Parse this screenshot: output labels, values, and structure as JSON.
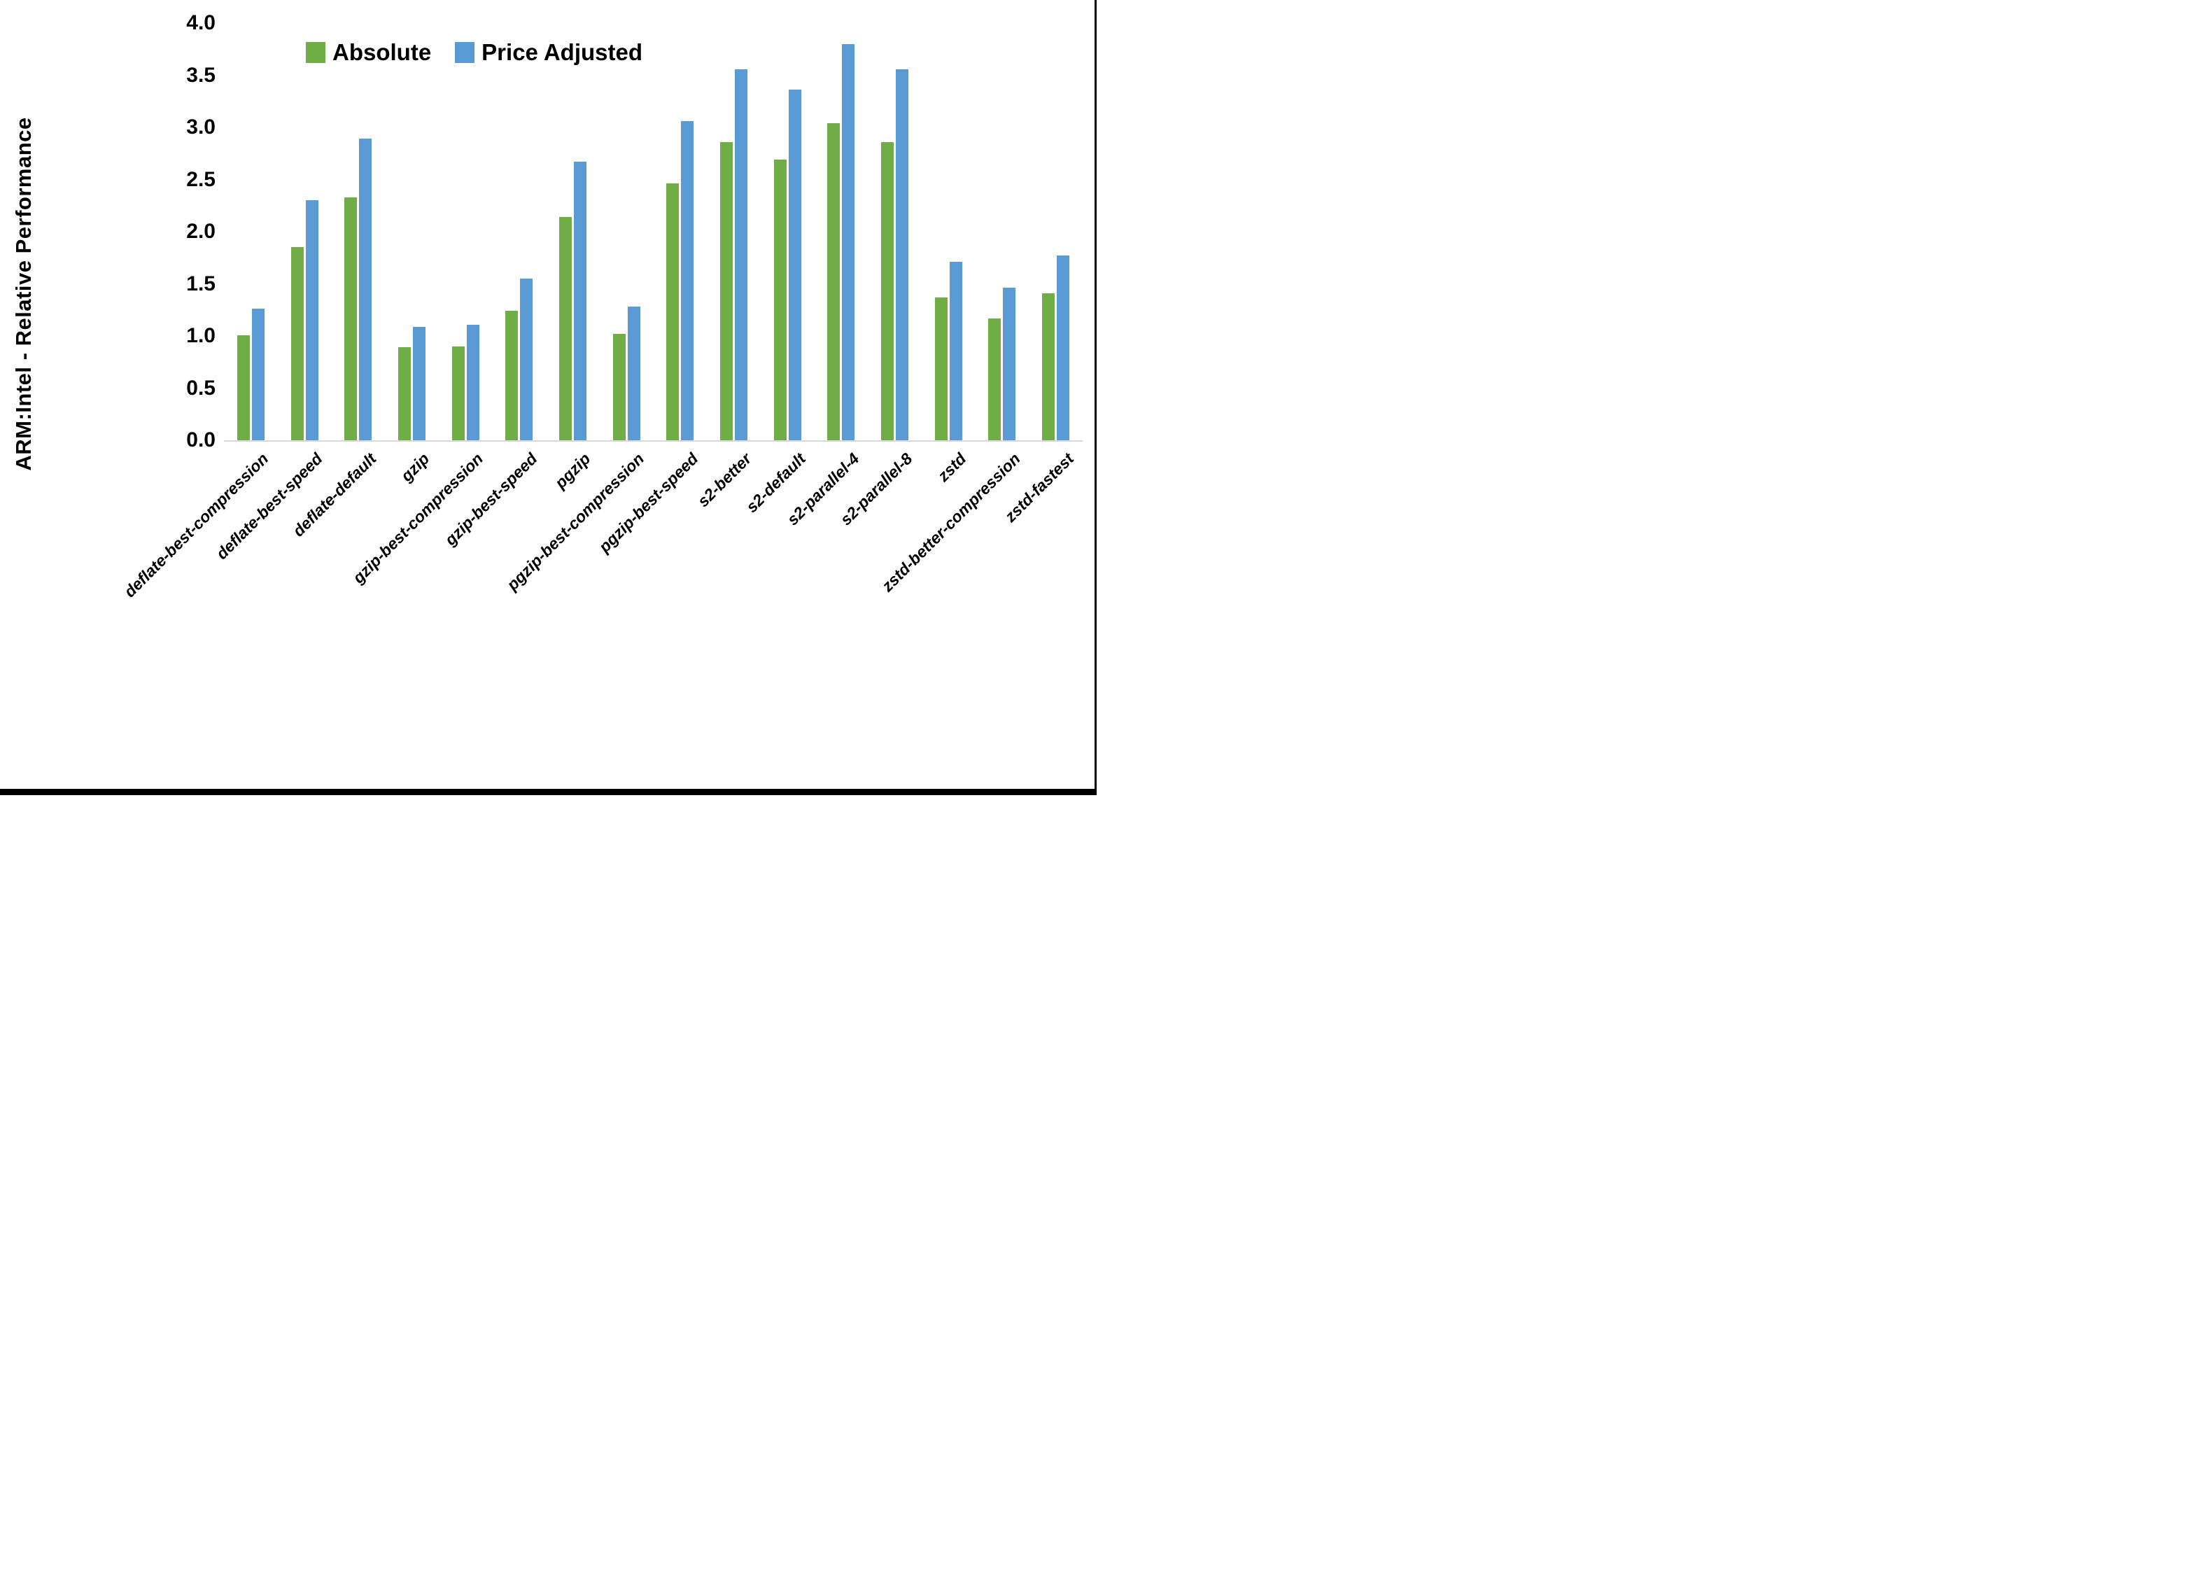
{
  "chart_data": {
    "type": "bar",
    "title": "",
    "ylabel": "ARM:Intel - Relative Performance",
    "xlabel": "",
    "ylim": [
      0.0,
      4.0
    ],
    "yticks": [
      "4.0",
      "3.5",
      "3.0",
      "2.5",
      "2.0",
      "1.5",
      "1.0",
      "0.5",
      "0.0"
    ],
    "grid": false,
    "legend_position": "top-center",
    "axis_line_color": "#D9D9D9",
    "text_color": "#000000",
    "categories": [
      "deflate-best-compression",
      "deflate-best-speed",
      "deflate-default",
      "gzip",
      "gzip-best-compression",
      "gzip-best-speed",
      "pgzip",
      "pgzip-best-compression",
      "pgzip-best-speed",
      "s2-better",
      "s2-default",
      "s2-parallel-4",
      "s2-parallel-8",
      "zstd",
      "zstd-better-compression",
      "zstd-fastest"
    ],
    "series": [
      {
        "name": "Absolute",
        "color": "#70AD47",
        "values": [
          1.01,
          1.85,
          2.33,
          0.89,
          0.9,
          1.24,
          2.14,
          1.02,
          2.46,
          2.86,
          2.69,
          3.04,
          2.86,
          1.37,
          1.17,
          1.41
        ]
      },
      {
        "name": "Price Adjusted",
        "color": "#5B9BD5",
        "values": [
          1.26,
          2.3,
          2.89,
          1.09,
          1.11,
          1.55,
          2.67,
          1.28,
          3.06,
          3.56,
          3.36,
          3.8,
          3.56,
          1.71,
          1.46,
          1.77
        ]
      }
    ]
  },
  "frame": {
    "right_border_color": "#000000",
    "bottom_border_color": "#000000"
  }
}
